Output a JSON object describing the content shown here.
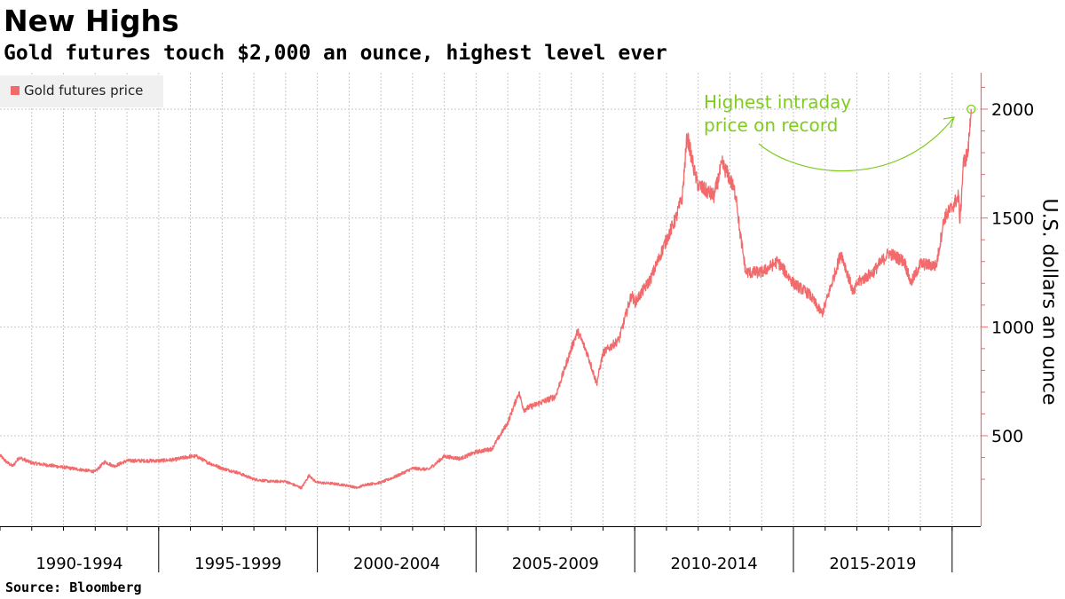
{
  "title": "New Highs",
  "subtitle": "Gold futures touch $2,000 an ounce, highest level ever",
  "source": "Source: Bloomberg",
  "chart_data": {
    "type": "line",
    "legend": {
      "label": "Gold futures price",
      "placement": "top-left"
    },
    "ylabel": "U.S. dollars an ounce",
    "y_axis_side": "right",
    "yticks": [
      500,
      1000,
      1500,
      2000
    ],
    "ylim": [
      200,
      2150
    ],
    "xlim": [
      1990.0,
      2020.9
    ],
    "grid": true,
    "x_groups": [
      {
        "label": "1990-1994",
        "start": 1990,
        "end": 1995
      },
      {
        "label": "1995-1999",
        "start": 1995,
        "end": 2000
      },
      {
        "label": "2000-2004",
        "start": 2000,
        "end": 2005
      },
      {
        "label": "2005-2009",
        "start": 2005,
        "end": 2010
      },
      {
        "label": "2010-2014",
        "start": 2010,
        "end": 2015
      },
      {
        "label": "2015-2019",
        "start": 2015,
        "end": 2020
      }
    ],
    "series": [
      {
        "name": "Gold futures price",
        "color": "#f26a6b",
        "x": [
          1990.0,
          1990.2,
          1990.4,
          1990.6,
          1991.0,
          1991.5,
          1992.0,
          1992.5,
          1993.0,
          1993.3,
          1993.6,
          1994.0,
          1994.5,
          1995.0,
          1995.5,
          1996.0,
          1996.2,
          1996.5,
          1997.0,
          1997.5,
          1998.0,
          1998.5,
          1999.0,
          1999.5,
          1999.75,
          1999.85,
          2000.0,
          2000.5,
          2001.0,
          2001.25,
          2001.5,
          2002.0,
          2002.5,
          2003.0,
          2003.5,
          2004.0,
          2004.5,
          2005.0,
          2005.5,
          2006.0,
          2006.35,
          2006.5,
          2007.0,
          2007.5,
          2008.0,
          2008.2,
          2008.5,
          2008.8,
          2009.0,
          2009.5,
          2009.9,
          2010.0,
          2010.5,
          2011.0,
          2011.3,
          2011.5,
          2011.65,
          2011.9,
          2012.0,
          2012.5,
          2012.75,
          2013.0,
          2013.2,
          2013.3,
          2013.5,
          2014.0,
          2014.5,
          2015.0,
          2015.5,
          2015.9,
          2016.0,
          2016.5,
          2016.9,
          2017.0,
          2017.5,
          2018.0,
          2018.5,
          2018.7,
          2019.0,
          2019.5,
          2019.75,
          2020.0,
          2020.2,
          2020.25,
          2020.35,
          2020.5,
          2020.6
        ],
        "y": [
          410,
          380,
          360,
          400,
          375,
          365,
          355,
          345,
          335,
          380,
          360,
          385,
          385,
          385,
          390,
          405,
          405,
          380,
          350,
          330,
          300,
          290,
          290,
          260,
          320,
          300,
          285,
          280,
          270,
          260,
          275,
          285,
          315,
          350,
          345,
          405,
          395,
          425,
          440,
          560,
          700,
          620,
          650,
          680,
          900,
          980,
          880,
          740,
          880,
          940,
          1150,
          1110,
          1220,
          1400,
          1500,
          1600,
          1880,
          1700,
          1650,
          1600,
          1750,
          1680,
          1600,
          1450,
          1250,
          1250,
          1300,
          1200,
          1150,
          1060,
          1100,
          1340,
          1150,
          1200,
          1250,
          1340,
          1300,
          1200,
          1290,
          1280,
          1500,
          1550,
          1600,
          1480,
          1750,
          1800,
          2000
        ]
      }
    ],
    "annotation": {
      "text": "Highest intraday\nprice on record",
      "x": 2020.6,
      "y": 2000,
      "color": "#7fcc1f"
    }
  }
}
